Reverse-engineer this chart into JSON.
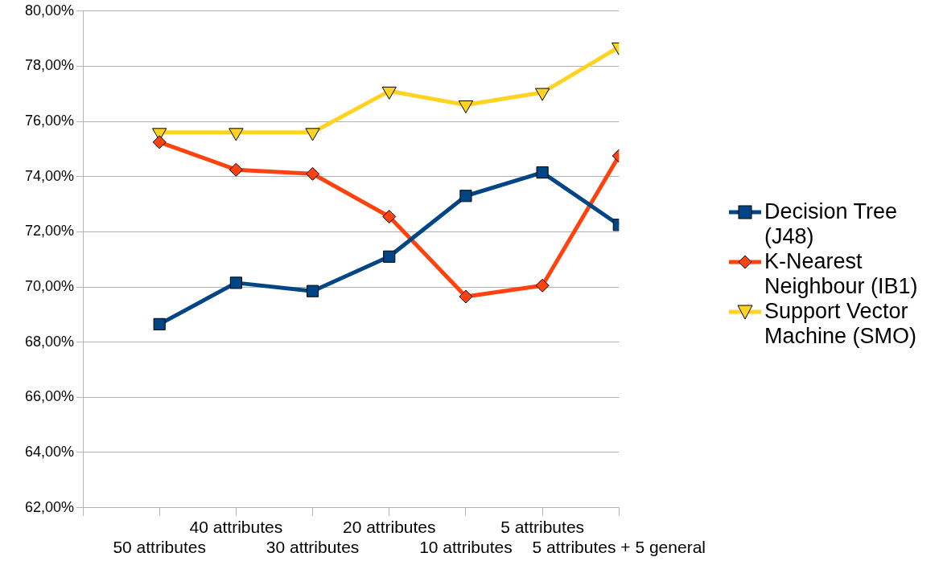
{
  "chart_data": {
    "type": "line",
    "categories": [
      "50 attributes",
      "40 attributes",
      "30 attributes",
      "20 attributes",
      "10 attributes",
      "5 attributes",
      "5 attributes + 5 general"
    ],
    "ylim": [
      62,
      80
    ],
    "yticks": [
      {
        "value": 62,
        "label": "62,00%"
      },
      {
        "value": 64,
        "label": "64,00%"
      },
      {
        "value": 66,
        "label": "66,00%"
      },
      {
        "value": 68,
        "label": "68,00%"
      },
      {
        "value": 70,
        "label": "70,00%"
      },
      {
        "value": 72,
        "label": "72,00%"
      },
      {
        "value": 74,
        "label": "74,00%"
      },
      {
        "value": 76,
        "label": "76,00%"
      },
      {
        "value": 78,
        "label": "78,00%"
      },
      {
        "value": 80,
        "label": "80,00%"
      }
    ],
    "grid": "y",
    "legend": "right",
    "line_style": "solid",
    "series": [
      {
        "name": "Decision Tree (J48)",
        "color": "#004586",
        "marker": "square",
        "values": [
          68.65,
          70.15,
          69.85,
          71.1,
          73.3,
          74.15,
          72.25
        ]
      },
      {
        "name": "K-Nearest Neighbour (IB1)",
        "color": "#ff420e",
        "marker": "diamond",
        "values": [
          75.25,
          74.25,
          74.1,
          72.55,
          69.65,
          70.05,
          74.75
        ]
      },
      {
        "name": "Support Vector Machine (SMO)",
        "color": "#ffd320",
        "marker": "triangle",
        "values": [
          75.6,
          75.6,
          75.6,
          77.1,
          76.6,
          77.05,
          78.7
        ]
      }
    ]
  }
}
